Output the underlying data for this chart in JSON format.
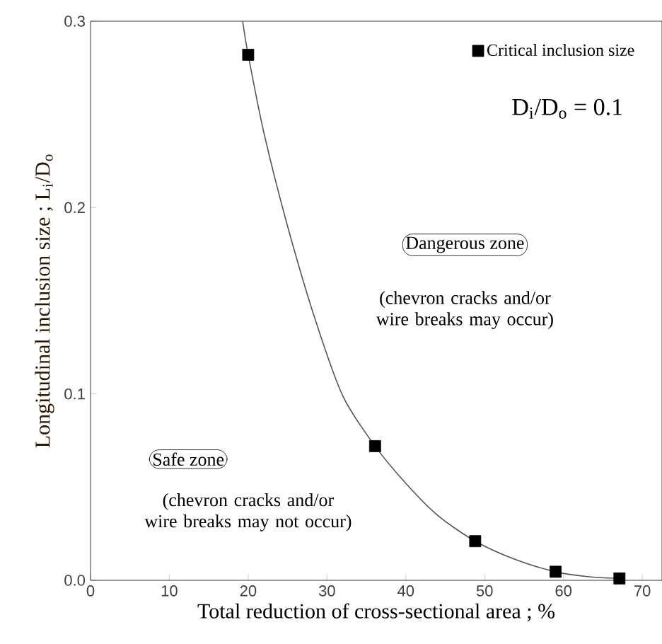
{
  "chart_data": {
    "type": "scatter",
    "xlabel": "Total reduction of cross-sectional area ; %",
    "ylabel": "Longitudinal inclusion size ; L$_{i}$/D$_{o}$",
    "xlim": [
      0,
      72.5
    ],
    "ylim": [
      0,
      0.3
    ],
    "xticks": [
      0,
      10,
      20,
      30,
      40,
      50,
      60,
      70
    ],
    "yticks": [
      {
        "value": 0,
        "label": "0.0"
      },
      0.1,
      0.2,
      0.3
    ],
    "legend": "top right",
    "grid": false,
    "series": [
      {
        "name": "Critical inclusion size",
        "marker": "square",
        "color": "#000000",
        "x": [
          20,
          36.1,
          48.8,
          59.0,
          67.1
        ],
        "values": [
          0.282,
          0.072,
          0.021,
          0.0046,
          0.001
        ]
      },
      {
        "type": "line",
        "color": "#555555",
        "marker": "none",
        "line_style": "solid",
        "x": [
          19.3,
          20,
          22,
          25,
          28.5,
          32,
          36.1,
          40,
          44,
          48.8,
          54,
          59,
          63,
          67.1
        ],
        "values": [
          0.3,
          0.282,
          0.24,
          0.19,
          0.14,
          0.099,
          0.072,
          0.052,
          0.035,
          0.021,
          0.011,
          0.0046,
          0.002,
          0.001
        ]
      }
    ],
    "annotations": [
      "D$_{i}$/D$_{o}$ = 0.1",
      "Dangerous zone",
      "(chevron cracks and/or wire breaks may occur)",
      "Safe zone",
      "(chevron cracks and/or wire breaks may not occur)"
    ]
  }
}
